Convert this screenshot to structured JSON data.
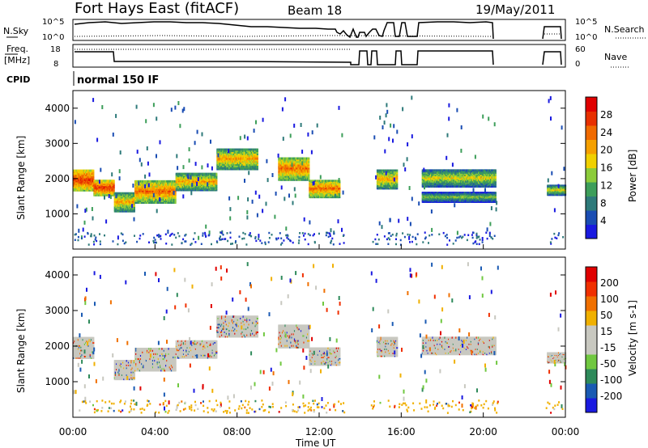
{
  "header": {
    "station": "Fort Hays East (fitACF)",
    "beam": "Beam 18",
    "date": "19/May/2011"
  },
  "side_labels": {
    "nsky": "N.Sky",
    "nsky_top": "10^5",
    "nsky_bottom": "10^0",
    "freq_line1": "Freq.",
    "freq_line2": "[MHz]",
    "freq_top": "18",
    "freq_bottom": "8",
    "cpid": "CPID",
    "nsearch": "N.Search",
    "nsearch_top": "10^5",
    "nsearch_bottom": "10^0",
    "nave": "Nave",
    "nave_top": "60",
    "nave_bottom": "0"
  },
  "cpid_text": "normal 150 IF",
  "colors": {
    "power_scale": [
      "#1a1ae0",
      "#1a4db3",
      "#2e7a7a",
      "#3d9e5a",
      "#8ccc3a",
      "#f0d000",
      "#f5a000",
      "#f06a00",
      "#e83000",
      "#e00000"
    ],
    "velocity_scale": [
      "#1a1ae0",
      "#1a5ab3",
      "#2e8a5a",
      "#70c840",
      "#c8c8c0",
      "#c8c8c0",
      "#f0b000",
      "#f07000",
      "#f03000",
      "#e00000"
    ]
  },
  "chart_data": [
    {
      "type": "heatmap",
      "name": "power",
      "ylabel": "Slant Range [km]",
      "colorbar_label": "Power [dB]",
      "colorbar_ticks": [
        "28",
        "24",
        "20",
        "16",
        "12",
        "8",
        "4"
      ],
      "yticks": [
        "4000",
        "3000",
        "2000",
        "1000"
      ],
      "ylim": [
        0,
        4500
      ],
      "bands": [
        {
          "t": [
            0.0,
            1.0
          ],
          "r": [
            1700,
            2300
          ],
          "level": 8
        },
        {
          "t": [
            1.0,
            2.0
          ],
          "r": [
            1550,
            2000
          ],
          "level": 8
        },
        {
          "t": [
            2.0,
            3.0
          ],
          "r": [
            1100,
            1650
          ],
          "level": 6
        },
        {
          "t": [
            3.0,
            5.0
          ],
          "r": [
            1350,
            2000
          ],
          "level": 7
        },
        {
          "t": [
            5.0,
            7.0
          ],
          "r": [
            1700,
            2200
          ],
          "level": 6
        },
        {
          "t": [
            7.0,
            9.0
          ],
          "r": [
            2300,
            2900
          ],
          "level": 6
        },
        {
          "t": [
            10.0,
            11.5
          ],
          "r": [
            2000,
            2650
          ],
          "level": 7
        },
        {
          "t": [
            11.5,
            13.0
          ],
          "r": [
            1500,
            2000
          ],
          "level": 7
        },
        {
          "t": [
            14.8,
            15.8
          ],
          "r": [
            1750,
            2300
          ],
          "level": 6
        },
        {
          "t": [
            17.0,
            20.6
          ],
          "r": [
            1800,
            2300
          ],
          "level": 5
        },
        {
          "t": [
            17.0,
            20.6
          ],
          "r": [
            1350,
            1650
          ],
          "level": 4
        },
        {
          "t": [
            23.1,
            24.0
          ],
          "r": [
            1550,
            1850
          ],
          "level": 5
        }
      ]
    },
    {
      "type": "heatmap",
      "name": "velocity",
      "ylabel": "Slant Range [km]",
      "xlabel": "Time UT",
      "colorbar_label": "Velocity [m s-1]",
      "colorbar_ticks": [
        "200",
        "100",
        "50",
        "15",
        "-15",
        "-50",
        "-100",
        "-200"
      ],
      "yticks": [
        "4000",
        "3000",
        "2000",
        "1000"
      ],
      "xticks": [
        "00:00",
        "04:00",
        "08:00",
        "12:00",
        "16:00",
        "20:00",
        "00:00"
      ],
      "xlim": [
        0,
        24
      ],
      "ylim": [
        0,
        4500
      ],
      "bands": [
        {
          "t": [
            0.0,
            1.0
          ],
          "r": [
            1700,
            2300
          ],
          "level": 4
        },
        {
          "t": [
            2.0,
            3.0
          ],
          "r": [
            1100,
            1650
          ],
          "level": 4
        },
        {
          "t": [
            3.0,
            5.0
          ],
          "r": [
            1350,
            2000
          ],
          "level": 4
        },
        {
          "t": [
            5.0,
            7.0
          ],
          "r": [
            1700,
            2200
          ],
          "level": 4
        },
        {
          "t": [
            7.0,
            9.0
          ],
          "r": [
            2300,
            2900
          ],
          "level": 4
        },
        {
          "t": [
            10.0,
            11.5
          ],
          "r": [
            2000,
            2650
          ],
          "level": 4
        },
        {
          "t": [
            11.5,
            13.0
          ],
          "r": [
            1500,
            2000
          ],
          "level": 4
        },
        {
          "t": [
            14.8,
            15.8
          ],
          "r": [
            1750,
            2300
          ],
          "level": 4
        },
        {
          "t": [
            17.0,
            20.6
          ],
          "r": [
            1800,
            2300
          ],
          "level": 4
        },
        {
          "t": [
            23.1,
            24.0
          ],
          "r": [
            1550,
            1850
          ],
          "level": 4
        }
      ]
    }
  ]
}
